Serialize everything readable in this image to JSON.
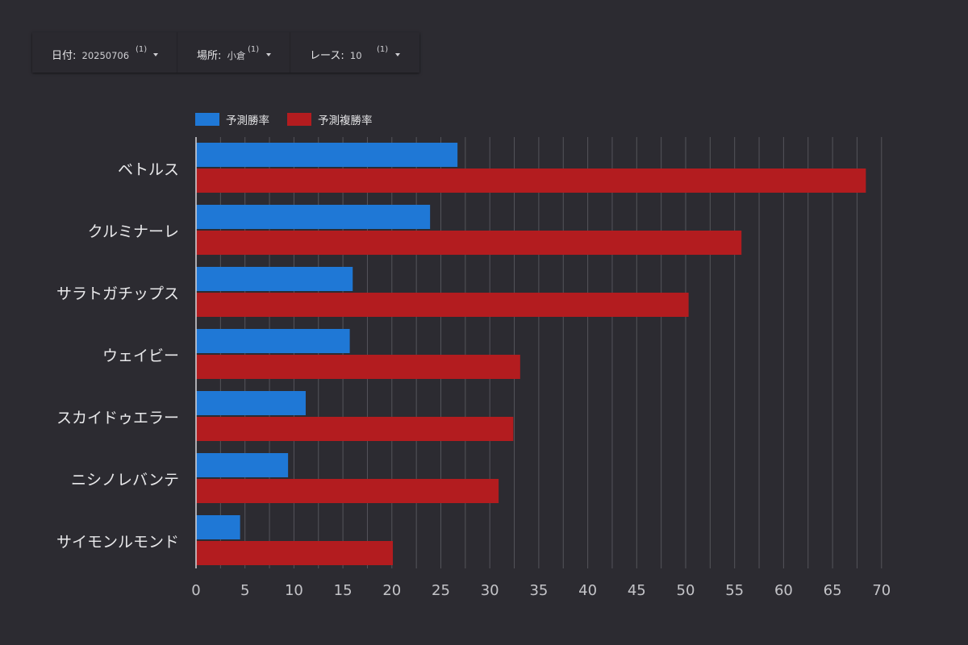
{
  "filters": [
    {
      "label": "日付",
      "value": "20250706",
      "count": "(1)"
    },
    {
      "label": "場所",
      "value": "小倉",
      "count": "(1)"
    },
    {
      "label": "レース",
      "value": "10",
      "count": "(1)"
    }
  ],
  "colors": {
    "background": "#2c2b31",
    "series1": "#1f78d6",
    "series2": "#b31c1f",
    "grid": "#54545a",
    "axis": "#d8d8dc"
  },
  "chart_data": {
    "type": "bar",
    "orientation": "horizontal",
    "title": "",
    "xlabel": "",
    "ylabel": "",
    "categories": [
      "ベトルス",
      "クルミナーレ",
      "サラトガチップス",
      "ウェイビー",
      "スカイドゥエラー",
      "ニシノレバンテ",
      "サイモンルモンド"
    ],
    "series": [
      {
        "name": "予測勝率",
        "color": "#1f78d6",
        "values": [
          26.7,
          23.9,
          16.0,
          15.7,
          11.2,
          9.4,
          4.5
        ]
      },
      {
        "name": "予測複勝率",
        "color": "#b31c1f",
        "values": [
          68.4,
          55.7,
          50.3,
          33.1,
          32.4,
          30.9,
          20.1
        ]
      }
    ],
    "xlim": [
      0,
      70
    ],
    "xticks": [
      "0",
      "5",
      "10",
      "15",
      "20",
      "25",
      "30",
      "35",
      "40",
      "45",
      "50",
      "55",
      "60",
      "65",
      "70"
    ],
    "grid": true,
    "legend_position": "top-left"
  }
}
